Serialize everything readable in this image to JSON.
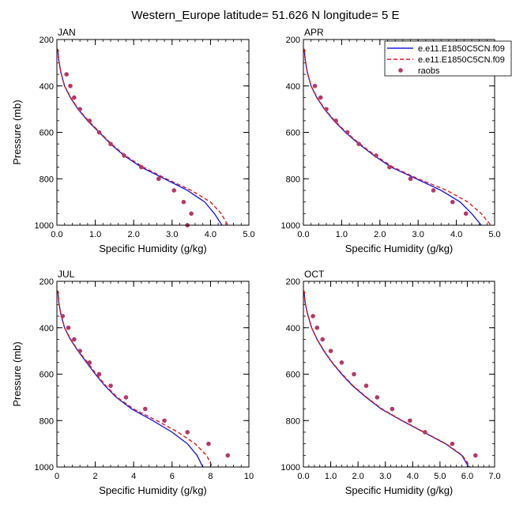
{
  "page": {
    "title": "Western_Europe  latitude= 51.626 N longitude= 5 E"
  },
  "legend": {
    "entries": [
      {
        "label": "e.e11.E1850C5CN.f09",
        "style": "solid",
        "color": "#1f1fdb"
      },
      {
        "label": "e.e11.E1850C5CN.f09",
        "style": "dashed",
        "color": "#e01a1a"
      },
      {
        "label": "raobs",
        "style": "marker",
        "color": "#b03a6a"
      }
    ]
  },
  "chart_data": [
    {
      "type": "line",
      "panel_label": "JAN",
      "xlabel": "Specific Humidity (g/kg)",
      "ylabel": "Pressure (mb)",
      "xlim": [
        0,
        5
      ],
      "ylim": [
        1000,
        200
      ],
      "x_ticks": [
        0,
        1,
        2,
        3,
        4,
        5
      ],
      "x_tick_labels": [
        "0.0",
        "1.0",
        "2.0",
        "3.0",
        "4.0",
        "5.0"
      ],
      "y_ticks": [
        200,
        400,
        600,
        800,
        1000
      ],
      "series": [
        {
          "style": "solid",
          "color": "#1f1fdb",
          "points": [
            [
              0.02,
              240
            ],
            [
              0.05,
              290
            ],
            [
              0.1,
              340
            ],
            [
              0.2,
              400
            ],
            [
              0.35,
              450
            ],
            [
              0.55,
              500
            ],
            [
              0.8,
              550
            ],
            [
              1.1,
              600
            ],
            [
              1.4,
              650
            ],
            [
              1.75,
              700
            ],
            [
              2.2,
              750
            ],
            [
              2.8,
              800
            ],
            [
              3.4,
              850
            ],
            [
              3.85,
              900
            ],
            [
              4.1,
              950
            ],
            [
              4.3,
              1000
            ]
          ]
        },
        {
          "style": "dashed",
          "color": "#e01a1a",
          "points": [
            [
              0.02,
              240
            ],
            [
              0.05,
              290
            ],
            [
              0.1,
              340
            ],
            [
              0.2,
              400
            ],
            [
              0.36,
              450
            ],
            [
              0.56,
              500
            ],
            [
              0.82,
              550
            ],
            [
              1.12,
              600
            ],
            [
              1.42,
              650
            ],
            [
              1.78,
              700
            ],
            [
              2.25,
              750
            ],
            [
              2.85,
              800
            ],
            [
              3.5,
              850
            ],
            [
              4.0,
              900
            ],
            [
              4.28,
              950
            ],
            [
              4.45,
              1000
            ]
          ]
        },
        {
          "style": "marker",
          "color": "#b03a6a",
          "points": [
            [
              0.25,
              350
            ],
            [
              0.35,
              400
            ],
            [
              0.45,
              450
            ],
            [
              0.6,
              500
            ],
            [
              0.85,
              550
            ],
            [
              1.1,
              600
            ],
            [
              1.4,
              650
            ],
            [
              1.75,
              700
            ],
            [
              2.2,
              750
            ],
            [
              2.65,
              800
            ],
            [
              3.05,
              850
            ],
            [
              3.3,
              900
            ],
            [
              3.5,
              950
            ],
            [
              3.4,
              1000
            ]
          ]
        }
      ]
    },
    {
      "type": "line",
      "panel_label": "APR",
      "xlabel": "Specific Humidity (g/kg)",
      "ylabel": "",
      "xlim": [
        0,
        5
      ],
      "ylim": [
        1000,
        200
      ],
      "x_ticks": [
        0,
        1,
        2,
        3,
        4,
        5
      ],
      "x_tick_labels": [
        "0.0",
        "1.0",
        "2.0",
        "3.0",
        "4.0",
        "5.0"
      ],
      "y_ticks": [
        200,
        400,
        600,
        800,
        1000
      ],
      "series": [
        {
          "style": "solid",
          "color": "#1f1fdb",
          "points": [
            [
              0.02,
              240
            ],
            [
              0.05,
              290
            ],
            [
              0.1,
              340
            ],
            [
              0.2,
              400
            ],
            [
              0.35,
              450
            ],
            [
              0.55,
              500
            ],
            [
              0.8,
              550
            ],
            [
              1.1,
              600
            ],
            [
              1.45,
              650
            ],
            [
              1.85,
              700
            ],
            [
              2.3,
              750
            ],
            [
              2.95,
              800
            ],
            [
              3.6,
              850
            ],
            [
              4.1,
              900
            ],
            [
              4.4,
              950
            ],
            [
              4.65,
              1000
            ]
          ]
        },
        {
          "style": "dashed",
          "color": "#e01a1a",
          "points": [
            [
              0.02,
              240
            ],
            [
              0.05,
              290
            ],
            [
              0.1,
              340
            ],
            [
              0.2,
              400
            ],
            [
              0.36,
              450
            ],
            [
              0.56,
              500
            ],
            [
              0.82,
              550
            ],
            [
              1.12,
              600
            ],
            [
              1.48,
              650
            ],
            [
              1.88,
              700
            ],
            [
              2.35,
              750
            ],
            [
              3.0,
              800
            ],
            [
              3.75,
              850
            ],
            [
              4.3,
              900
            ],
            [
              4.65,
              950
            ],
            [
              4.9,
              1000
            ]
          ]
        },
        {
          "style": "marker",
          "color": "#b03a6a",
          "points": [
            [
              0.3,
              400
            ],
            [
              0.45,
              450
            ],
            [
              0.6,
              500
            ],
            [
              0.85,
              550
            ],
            [
              1.15,
              600
            ],
            [
              1.45,
              650
            ],
            [
              1.9,
              700
            ],
            [
              2.25,
              750
            ],
            [
              2.8,
              800
            ],
            [
              3.4,
              850
            ],
            [
              3.9,
              900
            ],
            [
              4.25,
              950
            ]
          ]
        }
      ]
    },
    {
      "type": "line",
      "panel_label": "JUL",
      "xlabel": "Specific Humidity (g/kg)",
      "ylabel": "Pressure (mb)",
      "xlim": [
        0,
        10
      ],
      "ylim": [
        1000,
        200
      ],
      "x_ticks": [
        0,
        2,
        4,
        6,
        8,
        10
      ],
      "x_tick_labels": [
        "0",
        "2",
        "4",
        "6",
        "8",
        "10"
      ],
      "y_ticks": [
        200,
        400,
        600,
        800,
        1000
      ],
      "series": [
        {
          "style": "solid",
          "color": "#1f1fdb",
          "points": [
            [
              0.05,
              240
            ],
            [
              0.1,
              290
            ],
            [
              0.2,
              340
            ],
            [
              0.4,
              400
            ],
            [
              0.7,
              450
            ],
            [
              1.1,
              500
            ],
            [
              1.55,
              550
            ],
            [
              2.0,
              600
            ],
            [
              2.5,
              650
            ],
            [
              3.1,
              700
            ],
            [
              3.9,
              750
            ],
            [
              5.0,
              800
            ],
            [
              6.0,
              850
            ],
            [
              6.8,
              900
            ],
            [
              7.3,
              950
            ],
            [
              7.6,
              1000
            ]
          ]
        },
        {
          "style": "dashed",
          "color": "#e01a1a",
          "points": [
            [
              0.05,
              240
            ],
            [
              0.1,
              290
            ],
            [
              0.2,
              340
            ],
            [
              0.4,
              400
            ],
            [
              0.72,
              450
            ],
            [
              1.12,
              500
            ],
            [
              1.6,
              550
            ],
            [
              2.05,
              600
            ],
            [
              2.55,
              650
            ],
            [
              3.15,
              700
            ],
            [
              4.0,
              750
            ],
            [
              5.2,
              800
            ],
            [
              6.3,
              850
            ],
            [
              7.2,
              900
            ],
            [
              7.8,
              950
            ],
            [
              8.1,
              1000
            ]
          ]
        },
        {
          "style": "marker",
          "color": "#b03a6a",
          "points": [
            [
              0.3,
              350
            ],
            [
              0.6,
              400
            ],
            [
              0.9,
              450
            ],
            [
              1.2,
              500
            ],
            [
              1.7,
              550
            ],
            [
              2.2,
              600
            ],
            [
              2.8,
              650
            ],
            [
              3.6,
              700
            ],
            [
              4.6,
              750
            ],
            [
              5.6,
              800
            ],
            [
              6.8,
              850
            ],
            [
              7.9,
              900
            ],
            [
              8.9,
              950
            ]
          ]
        }
      ]
    },
    {
      "type": "line",
      "panel_label": "OCT",
      "xlabel": "Specific Humidity (g/kg)",
      "ylabel": "",
      "xlim": [
        0,
        7
      ],
      "ylim": [
        1000,
        200
      ],
      "x_ticks": [
        0,
        1,
        2,
        3,
        4,
        5,
        6,
        7
      ],
      "x_tick_labels": [
        "0.0",
        "1.0",
        "2.0",
        "3.0",
        "4.0",
        "5.0",
        "6.0",
        "7.0"
      ],
      "y_ticks": [
        200,
        400,
        600,
        800,
        1000
      ],
      "series": [
        {
          "style": "solid",
          "color": "#1f1fdb",
          "points": [
            [
              0.02,
              240
            ],
            [
              0.06,
              290
            ],
            [
              0.15,
              340
            ],
            [
              0.3,
              400
            ],
            [
              0.5,
              450
            ],
            [
              0.75,
              500
            ],
            [
              1.05,
              550
            ],
            [
              1.4,
              600
            ],
            [
              1.8,
              650
            ],
            [
              2.3,
              700
            ],
            [
              2.85,
              750
            ],
            [
              3.6,
              800
            ],
            [
              4.4,
              850
            ],
            [
              5.2,
              900
            ],
            [
              5.8,
              950
            ],
            [
              6.05,
              1000
            ]
          ]
        },
        {
          "style": "dashed",
          "color": "#e01a1a",
          "points": [
            [
              0.02,
              240
            ],
            [
              0.06,
              290
            ],
            [
              0.15,
              340
            ],
            [
              0.3,
              400
            ],
            [
              0.5,
              450
            ],
            [
              0.76,
              500
            ],
            [
              1.06,
              550
            ],
            [
              1.42,
              600
            ],
            [
              1.82,
              650
            ],
            [
              2.32,
              700
            ],
            [
              2.88,
              750
            ],
            [
              3.62,
              800
            ],
            [
              4.42,
              850
            ],
            [
              5.22,
              900
            ],
            [
              5.82,
              950
            ],
            [
              6.1,
              1000
            ]
          ]
        },
        {
          "style": "marker",
          "color": "#b03a6a",
          "points": [
            [
              0.35,
              350
            ],
            [
              0.5,
              400
            ],
            [
              0.7,
              450
            ],
            [
              1.0,
              500
            ],
            [
              1.4,
              550
            ],
            [
              1.85,
              600
            ],
            [
              2.3,
              650
            ],
            [
              2.7,
              700
            ],
            [
              3.25,
              750
            ],
            [
              3.9,
              800
            ],
            [
              4.45,
              850
            ],
            [
              5.45,
              900
            ],
            [
              6.3,
              950
            ]
          ]
        }
      ]
    }
  ]
}
